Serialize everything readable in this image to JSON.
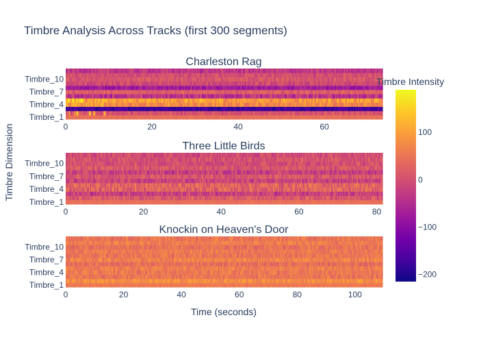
{
  "chart_data": {
    "type": "heatmap",
    "title": "Timbre Analysis Across Tracks (first 300 segments)",
    "xlabel": "Time (seconds)",
    "ylabel": "Timbre Dimension",
    "colorbar": {
      "title": "Timbre Intensity",
      "range": [
        -215,
        190
      ],
      "ticks": [
        100,
        0,
        -100,
        -200
      ],
      "tick_labels": [
        "100",
        "0",
        "−100",
        "−200"
      ],
      "colorscale": [
        "#0d0887",
        "#46039f",
        "#7201a8",
        "#9c179e",
        "#bd3786",
        "#d8576b",
        "#ed7953",
        "#fb9f3a",
        "#fdca26",
        "#f0f921"
      ]
    },
    "row_labels": [
      "Timbre_1",
      "Timbre_4",
      "Timbre_7",
      "Timbre_10"
    ],
    "rows": 12,
    "subplots": [
      {
        "name": "Charleston Rag",
        "x_range": [
          0,
          73.5
        ],
        "x_ticks": [
          0,
          20,
          40,
          60
        ],
        "columns": 300,
        "row_means": [
          45,
          5,
          -175,
          75,
          95,
          -40,
          20,
          -75,
          -10,
          10,
          0,
          -35
        ],
        "row_spread": [
          8,
          25,
          25,
          35,
          45,
          40,
          25,
          30,
          30,
          25,
          25,
          30
        ]
      },
      {
        "name": "Three Little Birds",
        "x_range": [
          0,
          81.5
        ],
        "x_ticks": [
          0,
          20,
          40,
          60,
          80
        ],
        "columns": 300,
        "row_means": [
          45,
          15,
          -20,
          25,
          30,
          -15,
          10,
          -20,
          10,
          0,
          5,
          -5
        ],
        "row_spread": [
          8,
          30,
          35,
          40,
          40,
          35,
          30,
          35,
          30,
          30,
          30,
          30
        ]
      },
      {
        "name": "Knockin on Heaven's Door",
        "x_range": [
          0,
          109.5
        ],
        "x_ticks": [
          0,
          20,
          40,
          60,
          80,
          100
        ],
        "columns": 300,
        "row_means": [
          55,
          80,
          50,
          55,
          60,
          40,
          65,
          50,
          55,
          45,
          60,
          50
        ],
        "row_spread": [
          10,
          25,
          25,
          25,
          25,
          25,
          25,
          25,
          25,
          25,
          25,
          25
        ]
      }
    ]
  }
}
